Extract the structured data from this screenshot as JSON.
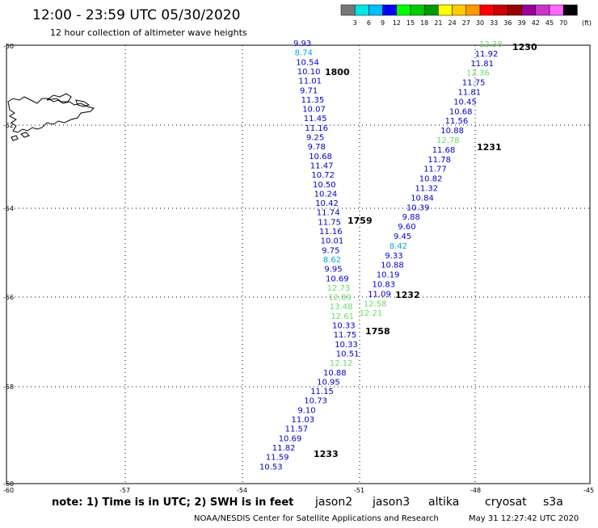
{
  "header": {
    "title": "12:00 - 23:59 UTC 05/30/2020",
    "subtitle": "12 hour collection of altimeter wave heights"
  },
  "colorbar": {
    "colors": [
      "#777777",
      "#00e6e6",
      "#00bfff",
      "#0000ff",
      "#00ff00",
      "#00cc00",
      "#009900",
      "#ffff00",
      "#ffcc00",
      "#ff9900",
      "#ff0000",
      "#cc0000",
      "#990000",
      "#990099",
      "#cc33cc",
      "#ff66ff",
      "#000000"
    ],
    "labels": [
      "3",
      "6",
      "9",
      "12",
      "15",
      "18",
      "21",
      "24",
      "27",
      "30",
      "33",
      "36",
      "39",
      "42",
      "45",
      "70"
    ],
    "unit": "(ft)"
  },
  "axes": {
    "lat_labels": [
      "-50",
      "-52",
      "-54",
      "-56",
      "-58",
      "-60"
    ],
    "lon_labels": [
      "-60",
      "-57",
      "-54",
      "-51",
      "-48",
      "-45"
    ]
  },
  "map": {
    "lat_range": [
      -60,
      -50
    ],
    "lon_range": [
      -60,
      -45
    ],
    "grid": "dotted"
  },
  "tracks": [
    {
      "times": [
        {
          "label": "1800",
          "color": "#ff0000"
        },
        {
          "label": "1759",
          "color": "#ff0000"
        },
        {
          "label": "1758",
          "color": "#ff0000"
        }
      ],
      "obs": [
        {
          "v": "9.93",
          "c": "#0000cc"
        },
        {
          "v": "8.74",
          "c": "#00aacc"
        },
        {
          "v": "10.54",
          "c": "#0000cc"
        },
        {
          "v": "10.10",
          "c": "#0000cc"
        },
        {
          "v": "11.01",
          "c": "#0000cc"
        },
        {
          "v": "9.71",
          "c": "#0000cc"
        },
        {
          "v": "11.35",
          "c": "#0000cc"
        },
        {
          "v": "10.07",
          "c": "#0000cc"
        },
        {
          "v": "11.45",
          "c": "#0000cc"
        },
        {
          "v": "11.16",
          "c": "#0000cc"
        },
        {
          "v": "9.25",
          "c": "#0000cc"
        },
        {
          "v": "9.78",
          "c": "#0000cc"
        },
        {
          "v": "10.68",
          "c": "#0000cc"
        },
        {
          "v": "11.47",
          "c": "#0000cc"
        },
        {
          "v": "10.72",
          "c": "#0000cc"
        },
        {
          "v": "10.50",
          "c": "#0000cc"
        },
        {
          "v": "10.24",
          "c": "#0000cc"
        },
        {
          "v": "10.42",
          "c": "#0000cc"
        },
        {
          "v": "11.74",
          "c": "#0000cc"
        },
        {
          "v": "11.75",
          "c": "#0000cc"
        },
        {
          "v": "11.16",
          "c": "#0000cc"
        },
        {
          "v": "10.01",
          "c": "#0000cc"
        },
        {
          "v": "9.75",
          "c": "#0000cc"
        },
        {
          "v": "8.62",
          "c": "#00aacc"
        },
        {
          "v": "9.95",
          "c": "#0000cc"
        },
        {
          "v": "10.69",
          "c": "#0000cc"
        },
        {
          "v": "12.73",
          "c": "#66dd66"
        },
        {
          "v": "12.89",
          "c": "#66dd66"
        },
        {
          "v": "13.48",
          "c": "#66dd66"
        },
        {
          "v": "12.61",
          "c": "#66dd66"
        },
        {
          "v": "10.33",
          "c": "#0000cc"
        },
        {
          "v": "11.75",
          "c": "#0000cc"
        },
        {
          "v": "10.33",
          "c": "#0000cc"
        },
        {
          "v": "10.51",
          "c": "#0000cc"
        },
        {
          "v": "12.12",
          "c": "#66dd66"
        },
        {
          "v": "10.88",
          "c": "#0000cc"
        },
        {
          "v": "10.95",
          "c": "#0000cc"
        },
        {
          "v": "11.15",
          "c": "#0000cc"
        },
        {
          "v": "10.73",
          "c": "#0000cc"
        },
        {
          "v": "9.10",
          "c": "#0000cc"
        },
        {
          "v": "11.03",
          "c": "#0000cc"
        },
        {
          "v": "11.57",
          "c": "#0000cc"
        },
        {
          "v": "10.69",
          "c": "#0000cc"
        },
        {
          "v": "11.82",
          "c": "#0000cc"
        },
        {
          "v": "11.59",
          "c": "#0000cc"
        },
        {
          "v": "10.53",
          "c": "#0000cc"
        }
      ],
      "end_time": {
        "label": "1233",
        "color": "#880000"
      }
    },
    {
      "times": [
        {
          "label": "1230",
          "color": "#880000"
        },
        {
          "label": "1231",
          "color": "#880000"
        },
        {
          "label": "1232",
          "color": "#880000"
        }
      ],
      "obs": [
        {
          "v": "12.38",
          "c": "#66dd66"
        },
        {
          "v": "11.92",
          "c": "#0000cc"
        },
        {
          "v": "11.81",
          "c": "#0000cc"
        },
        {
          "v": "12.36",
          "c": "#66dd66"
        },
        {
          "v": "11.75",
          "c": "#0000cc"
        },
        {
          "v": "11.81",
          "c": "#0000cc"
        },
        {
          "v": "10.45",
          "c": "#0000cc"
        },
        {
          "v": "10.68",
          "c": "#0000cc"
        },
        {
          "v": "11.56",
          "c": "#0000cc"
        },
        {
          "v": "10.88",
          "c": "#0000cc"
        },
        {
          "v": "12.78",
          "c": "#66dd66"
        },
        {
          "v": "11.68",
          "c": "#0000cc"
        },
        {
          "v": "11.78",
          "c": "#0000cc"
        },
        {
          "v": "11.77",
          "c": "#0000cc"
        },
        {
          "v": "10.82",
          "c": "#0000cc"
        },
        {
          "v": "11.32",
          "c": "#0000cc"
        },
        {
          "v": "10.84",
          "c": "#0000cc"
        },
        {
          "v": "10.39",
          "c": "#0000cc"
        },
        {
          "v": "9.88",
          "c": "#0000cc"
        },
        {
          "v": "9.60",
          "c": "#0000cc"
        },
        {
          "v": "9.45",
          "c": "#0000cc"
        },
        {
          "v": "8.42",
          "c": "#00aacc"
        },
        {
          "v": "9.33",
          "c": "#0000cc"
        },
        {
          "v": "10.88",
          "c": "#0000cc"
        },
        {
          "v": "10.19",
          "c": "#0000cc"
        },
        {
          "v": "10.83",
          "c": "#0000cc"
        },
        {
          "v": "11.09",
          "c": "#0000cc"
        },
        {
          "v": "12.58",
          "c": "#66dd66"
        },
        {
          "v": "12.21",
          "c": "#66dd66"
        }
      ]
    }
  ],
  "footer": {
    "note": "note: 1) Time is in UTC; 2) SWH is in feet",
    "satellites": [
      {
        "name": "jason2",
        "color": "#0000cc"
      },
      {
        "name": "jason3",
        "color": "#00aa00"
      },
      {
        "name": "altika",
        "color": "#ff9900"
      },
      {
        "name": "cryosat",
        "color": "#cc0000"
      },
      {
        "name": "s3a",
        "color": "#990000"
      }
    ],
    "credit": "NOAA/NESDIS Center for Satellite Applications and Research",
    "timestamp": "May 31 12:27:42 UTC 2020"
  }
}
